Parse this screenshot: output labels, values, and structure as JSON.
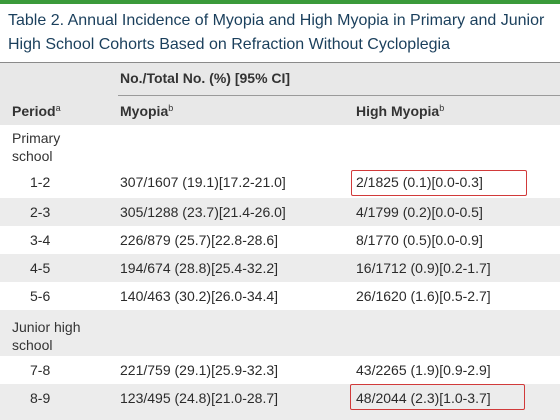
{
  "title": "Table 2. Annual Incidence of Myopia and High Myopia in Primary and Junior High School Cohorts Based on Refraction Without Cycloplegia",
  "colors": {
    "title_text": "#1a3f5c",
    "top_rule": "#3a9a3a",
    "header_band": "#e8e8e8",
    "row_shade": "#ececec",
    "highlight_box": "#d13a3a"
  },
  "header": {
    "group_label": "No./Total No. (%) [95% CI]",
    "period": "Period",
    "period_sup": "a",
    "myopia": "Myopia",
    "myopia_sup": "b",
    "high_myopia": "High Myopia",
    "high_myopia_sup": "b"
  },
  "groups": [
    {
      "label": "Primary school",
      "rows": [
        {
          "period": "1-2",
          "myopia": "307/1607 (19.1)[17.2-21.0]",
          "high_myopia": "2/1825 (0.1)[0.0-0.3]",
          "highlighted": true
        },
        {
          "period": "2-3",
          "myopia": "305/1288 (23.7)[21.4-26.0]",
          "high_myopia": "4/1799 (0.2)[0.0-0.5]",
          "highlighted": false
        },
        {
          "period": "3-4",
          "myopia": "226/879 (25.7)[22.8-28.6]",
          "high_myopia": "8/1770 (0.5)[0.0-0.9]",
          "highlighted": false
        },
        {
          "period": "4-5",
          "myopia": "194/674 (28.8)[25.4-32.2]",
          "high_myopia": "16/1712 (0.9)[0.2-1.7]",
          "highlighted": false
        },
        {
          "period": "5-6",
          "myopia": "140/463 (30.2)[26.0-34.4]",
          "high_myopia": "26/1620 (1.6)[0.5-2.7]",
          "highlighted": false
        }
      ]
    },
    {
      "label": "Junior high school",
      "rows": [
        {
          "period": "7-8",
          "myopia": "221/759 (29.1)[25.9-32.3]",
          "high_myopia": "43/2265 (1.9)[0.9-2.9]",
          "highlighted": false
        },
        {
          "period": "8-9",
          "myopia": "123/495 (24.8)[21.0-28.7]",
          "high_myopia": "48/2044 (2.3)[1.0-3.7]",
          "highlighted": true
        }
      ]
    }
  ]
}
